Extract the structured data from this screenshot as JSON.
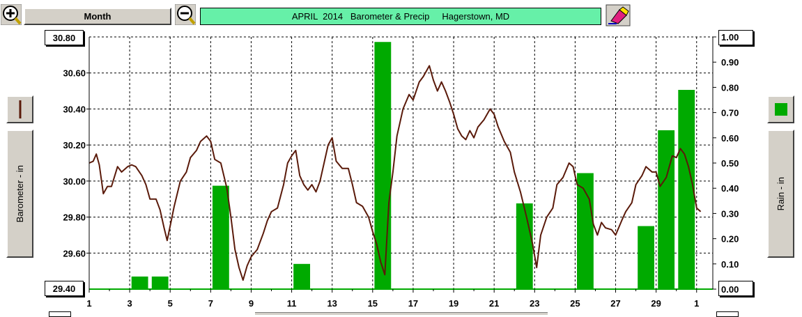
{
  "toolbar": {
    "zoom_in_icon": "zoom-in-icon",
    "period_label": "Month",
    "zoom_out_icon": "zoom-out-icon",
    "clear_icon": "eraser-icon"
  },
  "title": "APRIL  2014   Barometer & Precip     Hagerstown, MD",
  "left_axis": {
    "label": "Barometer - in",
    "max_label": "30.80",
    "min_label": "29.40",
    "series_color": "#5a1a0a",
    "tick_labels": [
      "30.60",
      "30.40",
      "30.20",
      "30.00",
      "29.80",
      "29.60"
    ]
  },
  "right_axis": {
    "label": "Rain - in",
    "series_color": "#00aa00",
    "tick_labels": [
      "1.00",
      "0.90",
      "0.80",
      "0.70",
      "0.60",
      "0.50",
      "0.40",
      "0.30",
      "0.20",
      "0.10",
      "0.00"
    ]
  },
  "x_tick_labels": [
    "1",
    "3",
    "5",
    "7",
    "9",
    "11",
    "13",
    "15",
    "17",
    "19",
    "21",
    "23",
    "25",
    "27",
    "29",
    "1"
  ],
  "chart_data": {
    "type": "line+bar",
    "title": "APRIL  2014   Barometer & Precip     Hagerstown, MD",
    "x_range": [
      1,
      31.8
    ],
    "grid": true,
    "series": [
      {
        "name": "Barometer - in",
        "type": "line",
        "axis": "left",
        "ylim": [
          29.4,
          30.8
        ],
        "color": "#5a1a0a",
        "points": [
          [
            1.0,
            30.1
          ],
          [
            1.2,
            30.11
          ],
          [
            1.35,
            30.15
          ],
          [
            1.5,
            30.09
          ],
          [
            1.7,
            29.93
          ],
          [
            1.9,
            29.97
          ],
          [
            2.1,
            29.97
          ],
          [
            2.4,
            30.08
          ],
          [
            2.6,
            30.05
          ],
          [
            2.9,
            30.08
          ],
          [
            3.1,
            30.09
          ],
          [
            3.3,
            30.08
          ],
          [
            3.6,
            30.03
          ],
          [
            3.8,
            29.98
          ],
          [
            4.0,
            29.9
          ],
          [
            4.3,
            29.9
          ],
          [
            4.5,
            29.84
          ],
          [
            4.7,
            29.74
          ],
          [
            4.85,
            29.67
          ],
          [
            5.0,
            29.75
          ],
          [
            5.2,
            29.86
          ],
          [
            5.5,
            30.0
          ],
          [
            5.8,
            30.05
          ],
          [
            6.0,
            30.13
          ],
          [
            6.3,
            30.17
          ],
          [
            6.5,
            30.22
          ],
          [
            6.8,
            30.25
          ],
          [
            7.0,
            30.22
          ],
          [
            7.2,
            30.12
          ],
          [
            7.5,
            30.1
          ],
          [
            7.8,
            29.96
          ],
          [
            8.0,
            29.8
          ],
          [
            8.2,
            29.62
          ],
          [
            8.4,
            29.52
          ],
          [
            8.6,
            29.45
          ],
          [
            8.8,
            29.53
          ],
          [
            9.0,
            29.58
          ],
          [
            9.3,
            29.62
          ],
          [
            9.6,
            29.71
          ],
          [
            9.8,
            29.78
          ],
          [
            10.0,
            29.83
          ],
          [
            10.3,
            29.85
          ],
          [
            10.6,
            29.98
          ],
          [
            10.8,
            30.1
          ],
          [
            11.0,
            30.14
          ],
          [
            11.2,
            30.17
          ],
          [
            11.4,
            30.03
          ],
          [
            11.6,
            29.98
          ],
          [
            11.8,
            29.95
          ],
          [
            12.0,
            29.98
          ],
          [
            12.2,
            29.94
          ],
          [
            12.4,
            30.0
          ],
          [
            12.6,
            30.1
          ],
          [
            12.8,
            30.2
          ],
          [
            13.0,
            30.24
          ],
          [
            13.2,
            30.11
          ],
          [
            13.5,
            30.07
          ],
          [
            13.8,
            30.07
          ],
          [
            14.0,
            29.98
          ],
          [
            14.2,
            29.88
          ],
          [
            14.5,
            29.86
          ],
          [
            14.8,
            29.8
          ],
          [
            15.0,
            29.72
          ],
          [
            15.2,
            29.65
          ],
          [
            15.4,
            29.55
          ],
          [
            15.6,
            29.48
          ],
          [
            15.8,
            29.88
          ],
          [
            16.0,
            30.05
          ],
          [
            16.2,
            30.25
          ],
          [
            16.5,
            30.4
          ],
          [
            16.8,
            30.48
          ],
          [
            17.0,
            30.45
          ],
          [
            17.3,
            30.55
          ],
          [
            17.5,
            30.58
          ],
          [
            17.8,
            30.64
          ],
          [
            18.0,
            30.56
          ],
          [
            18.2,
            30.5
          ],
          [
            18.4,
            30.55
          ],
          [
            18.6,
            30.5
          ],
          [
            18.8,
            30.44
          ],
          [
            19.0,
            30.37
          ],
          [
            19.2,
            30.29
          ],
          [
            19.4,
            30.25
          ],
          [
            19.6,
            30.23
          ],
          [
            19.8,
            30.28
          ],
          [
            20.0,
            30.24
          ],
          [
            20.2,
            30.3
          ],
          [
            20.5,
            30.34
          ],
          [
            20.8,
            30.4
          ],
          [
            21.0,
            30.37
          ],
          [
            21.2,
            30.3
          ],
          [
            21.5,
            30.22
          ],
          [
            21.8,
            30.16
          ],
          [
            22.0,
            30.05
          ],
          [
            22.3,
            29.94
          ],
          [
            22.6,
            29.8
          ],
          [
            22.9,
            29.65
          ],
          [
            23.1,
            29.52
          ],
          [
            23.3,
            29.7
          ],
          [
            23.6,
            29.8
          ],
          [
            23.9,
            29.85
          ],
          [
            24.1,
            29.98
          ],
          [
            24.4,
            30.02
          ],
          [
            24.7,
            30.1
          ],
          [
            24.9,
            30.08
          ],
          [
            25.1,
            29.98
          ],
          [
            25.4,
            29.96
          ],
          [
            25.7,
            29.9
          ],
          [
            25.9,
            29.76
          ],
          [
            26.1,
            29.7
          ],
          [
            26.3,
            29.77
          ],
          [
            26.5,
            29.74
          ],
          [
            26.8,
            29.73
          ],
          [
            27.0,
            29.7
          ],
          [
            27.3,
            29.78
          ],
          [
            27.5,
            29.83
          ],
          [
            27.8,
            29.88
          ],
          [
            28.0,
            29.98
          ],
          [
            28.3,
            30.03
          ],
          [
            28.5,
            30.08
          ],
          [
            28.8,
            30.05
          ],
          [
            29.0,
            30.05
          ],
          [
            29.2,
            29.97
          ],
          [
            29.5,
            30.02
          ],
          [
            29.8,
            30.14
          ],
          [
            30.0,
            30.13
          ],
          [
            30.2,
            30.18
          ],
          [
            30.4,
            30.15
          ],
          [
            30.6,
            30.08
          ],
          [
            30.8,
            29.98
          ],
          [
            31.0,
            29.85
          ],
          [
            31.2,
            29.83
          ]
        ]
      },
      {
        "name": "Rain - in",
        "type": "bar",
        "axis": "right",
        "ylim": [
          0,
          1.0
        ],
        "color": "#00aa00",
        "bars": [
          {
            "x": 3.5,
            "value": 0.05
          },
          {
            "x": 4.5,
            "value": 0.05
          },
          {
            "x": 7.5,
            "value": 0.41
          },
          {
            "x": 11.5,
            "value": 0.1
          },
          {
            "x": 15.5,
            "value": 0.98
          },
          {
            "x": 22.5,
            "value": 0.34
          },
          {
            "x": 25.5,
            "value": 0.46
          },
          {
            "x": 28.5,
            "value": 0.25
          },
          {
            "x": 29.5,
            "value": 0.63
          },
          {
            "x": 30.5,
            "value": 0.79
          }
        ]
      }
    ]
  }
}
